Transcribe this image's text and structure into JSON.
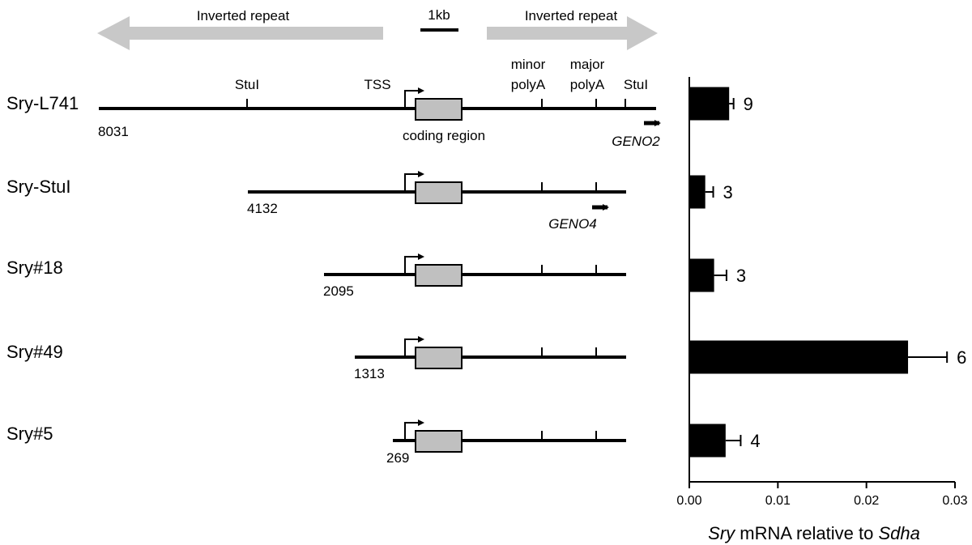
{
  "figure": {
    "inverted_repeat_left": "Inverted repeat",
    "inverted_repeat_right": "Inverted repeat",
    "scale_bar_label": "1kb",
    "site_stui_1": "StuI",
    "site_tss": "TSS",
    "site_minor_line1": "minor",
    "site_minor_line2": "polyA",
    "site_major_line1": "major",
    "site_major_line2": "polyA",
    "site_stui_2": "StuI",
    "coding_region_label": "coding region",
    "primer_geno2": "GENO2",
    "primer_geno4": "GENO4",
    "constructs": [
      {
        "name": "Sry-L741",
        "start_label": "8031",
        "n": "9"
      },
      {
        "name": "Sry-StuI",
        "start_label": "4132",
        "n": "3"
      },
      {
        "name": "Sry#18",
        "start_label": "2095",
        "n": "3"
      },
      {
        "name": "Sry#49",
        "start_label": "1313",
        "n": "6"
      },
      {
        "name": "Sry#5",
        "start_label": "269",
        "n": "4"
      }
    ]
  },
  "chart_data": {
    "type": "bar",
    "orientation": "horizontal",
    "categories": [
      "Sry-L741",
      "Sry-StuI",
      "Sry#18",
      "Sry#49",
      "Sry#5"
    ],
    "values": [
      0.0045,
      0.0018,
      0.0028,
      0.0247,
      0.0041
    ],
    "errors": [
      0.0005,
      0.0009,
      0.0014,
      0.0044,
      0.0017
    ],
    "n_labels": [
      "9",
      "3",
      "3",
      "6",
      "4"
    ],
    "xlim": [
      0,
      0.03
    ],
    "xticks": [
      "0.00",
      "0.01",
      "0.02",
      "0.03"
    ],
    "xlabel_italic_1": "Sry",
    "xlabel_mid": " mRNA relative to ",
    "xlabel_italic_2": "Sdha",
    "colors": {
      "bar": "#000000",
      "arrow": "#c8c8c8",
      "coding_box": "#c0c0c0"
    }
  }
}
